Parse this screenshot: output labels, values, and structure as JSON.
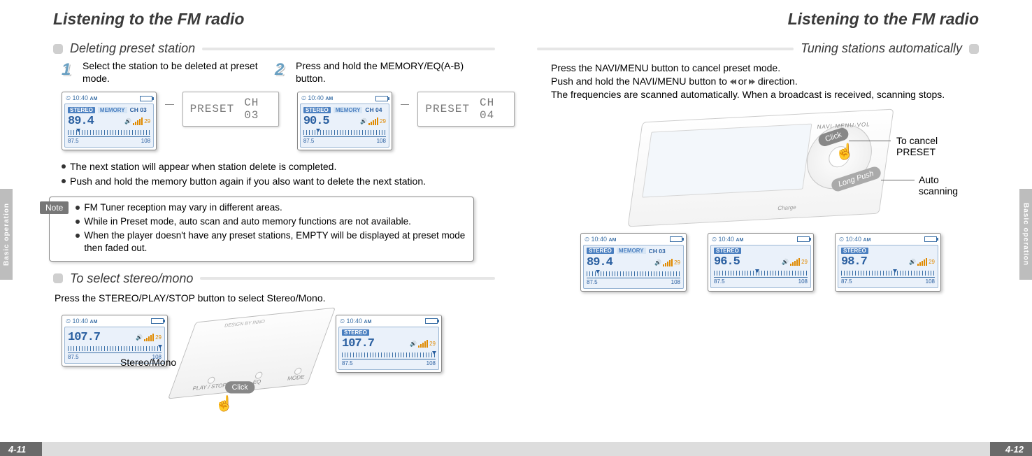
{
  "colors": {
    "text": "#000000",
    "heading": "#3a3a3a",
    "accent_blue": "#2a5fa0",
    "accent_blue_light": "#eaf1fa",
    "badge_blue": "#4a7fc0",
    "volume_orange": "#e08a00",
    "sub_rule": "#e6e6e6",
    "sub_bullet": "#cfcfcf",
    "note_tag_bg": "#777777",
    "side_tab_bg": "#bdbdbd",
    "pagebar_dark": "#6a6a6a",
    "pagebar_light": "#dddddd"
  },
  "side_tab": "Basic operation",
  "left": {
    "page_title": "Listening to the FM radio",
    "sub_deleting": "Deleting preset station",
    "step1_num": "1",
    "step1_text": "Select the station to be deleted at preset mode.",
    "step2_num": "2",
    "step2_text": "Press and hold the MEMORY/EQ(A-B) button.",
    "preset_label_1a": "PRESET",
    "preset_label_1b": "CH 03",
    "preset_label_2a": "PRESET",
    "preset_label_2b": "CH 04",
    "bullets_after_lcd_1": "The next station will appear when station delete is completed.",
    "bullets_after_lcd_2": "Push and hold the memory button again if you also want to delete the next station.",
    "note_tag": "Note",
    "note_1": "FM Tuner reception may vary in different areas.",
    "note_2": "While in Preset mode, auto scan and auto memory functions are not available.",
    "note_3": "When the player doesn't have any preset stations, EMPTY will be displayed at preset mode then faded out.",
    "sub_stereo": "To select stereo/mono",
    "stereo_body": "Press the STEREO/PLAY/STOP button to select Stereo/Mono.",
    "stereo_label": "Stereo/Mono",
    "click_label": "Click",
    "device_labels": {
      "playstop": "PLAY / STOP",
      "eq": "EQ",
      "mode": "MODE",
      "brand": "DESIGN BY INNO"
    },
    "page_num": "4-11",
    "lcds": {
      "a": {
        "time": "10:40",
        "ampm": "AM",
        "stereo": "STEREO",
        "memory": "MEMORY",
        "ch": "CH 03",
        "freq": "89.4",
        "vol": "29",
        "lo": "87.5",
        "hi": "108",
        "marker_pct": 10
      },
      "b": {
        "time": "10:40",
        "ampm": "AM",
        "stereo": "STEREO",
        "memory": "MEMORY",
        "ch": "CH 04",
        "freq": "90.5",
        "vol": "29",
        "lo": "87.5",
        "hi": "108",
        "marker_pct": 15
      },
      "c": {
        "time": "10:40",
        "ampm": "AM",
        "stereo": "",
        "memory": "",
        "ch": "",
        "freq": "107.7",
        "vol": "29",
        "lo": "87.5",
        "hi": "108",
        "marker_pct": 96
      },
      "d": {
        "time": "10:40",
        "ampm": "AM",
        "stereo": "STEREO",
        "memory": "",
        "ch": "",
        "freq": "107.7",
        "vol": "29",
        "lo": "87.5",
        "hi": "108",
        "marker_pct": 96
      }
    }
  },
  "right": {
    "page_title": "Listening to the FM radio",
    "sub_tuning": "Tuning stations automatically",
    "body_line1": "Press the NAVI/MENU button to cancel preset mode.",
    "body_line2_a": "Push and hold the NAVI/MENU button to ",
    "body_line2_b": " or ",
    "body_line2_c": " direction.",
    "body_line3": "The frequencies are scanned automatically. When a broadcast is received, scanning stops.",
    "callout_cancel": "To cancel PRESET",
    "callout_auto": "Auto scanning",
    "click_label": "Click",
    "longpush_label": "Long Push",
    "ring_label": "NAVI·MENU·VOL",
    "charge_label": "Charge",
    "page_num": "4-12",
    "lcds": {
      "a": {
        "time": "10:40",
        "ampm": "AM",
        "stereo": "STEREO",
        "memory": "MEMORY",
        "ch": "CH 03",
        "freq": "89.4",
        "vol": "29",
        "lo": "87.5",
        "hi": "108",
        "marker_pct": 10
      },
      "b": {
        "time": "10:40",
        "ampm": "AM",
        "stereo": "STEREO",
        "memory": "",
        "ch": "",
        "freq": "96.5",
        "vol": "29",
        "lo": "87.5",
        "hi": "108",
        "marker_pct": 44
      },
      "c": {
        "time": "10:40",
        "ampm": "AM",
        "stereo": "STEREO",
        "memory": "",
        "ch": "",
        "freq": "98.7",
        "vol": "29",
        "lo": "87.5",
        "hi": "108",
        "marker_pct": 55
      }
    }
  }
}
